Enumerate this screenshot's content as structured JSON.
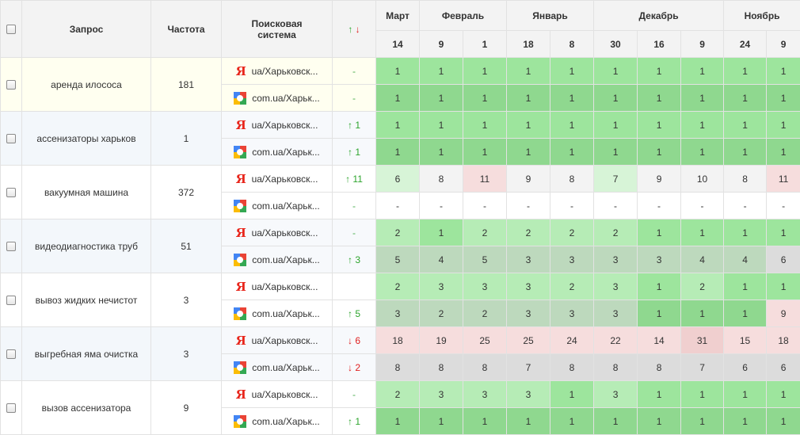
{
  "header": {
    "query_label": "Запрос",
    "freq_label": "Частота",
    "engine_label_line1": "Поисковая",
    "engine_label_line2": "система",
    "sort_up": "↑",
    "sort_down": "↓",
    "months": [
      {
        "label": "Март",
        "span": 1
      },
      {
        "label": "Февраль",
        "span": 2
      },
      {
        "label": "Январь",
        "span": 2
      },
      {
        "label": "Декабрь",
        "span": 3
      },
      {
        "label": "Ноябрь",
        "span": 2
      }
    ],
    "days": [
      "14",
      "9",
      "1",
      "18",
      "8",
      "30",
      "16",
      "9",
      "24",
      "9"
    ]
  },
  "colors": {
    "green_strong": "#9de59d",
    "green_mid": "#b6ecb6",
    "green_light": "#d7f4d7",
    "gray_green": "#bdd9bd",
    "gray": "#dcdcdc",
    "pink": "#f6dddd",
    "pink_strong": "#f0cfcf",
    "google_dark_green": "#8fd88f",
    "neutral": "#f3f3f3"
  },
  "rows": [
    {
      "query": "аренда илососа",
      "freq": "181",
      "tint": "y",
      "engines": [
        {
          "type": "yandex",
          "name": "ua/Харьковск...",
          "change": "-",
          "dir": "none",
          "positions": [
            "1",
            "1",
            "1",
            "1",
            "1",
            "1",
            "1",
            "1",
            "1",
            "1"
          ],
          "shade": "green_strong"
        },
        {
          "type": "google",
          "name": "com.ua/Харьк...",
          "change": "-",
          "dir": "none",
          "positions": [
            "1",
            "1",
            "1",
            "1",
            "1",
            "1",
            "1",
            "1",
            "1",
            "1"
          ],
          "shade": "google_dark_green"
        }
      ]
    },
    {
      "query": "ассенизаторы харьков",
      "freq": "1",
      "tint": "b",
      "engines": [
        {
          "type": "yandex",
          "name": "ua/Харьковск...",
          "change": "↑ 1",
          "dir": "up",
          "positions": [
            "1",
            "1",
            "1",
            "1",
            "1",
            "1",
            "1",
            "1",
            "1",
            "1"
          ],
          "shade": "green_strong"
        },
        {
          "type": "google",
          "name": "com.ua/Харьк...",
          "change": "↑ 1",
          "dir": "up",
          "positions": [
            "1",
            "1",
            "1",
            "1",
            "1",
            "1",
            "1",
            "1",
            "1",
            "1"
          ],
          "shade": "google_dark_green"
        }
      ]
    },
    {
      "query": "вакуумная машина",
      "freq": "372",
      "tint": "w",
      "engines": [
        {
          "type": "yandex",
          "name": "ua/Харьковск...",
          "change": "↑ 11",
          "dir": "up",
          "positions": [
            "6",
            "8",
            "11",
            "9",
            "8",
            "7",
            "9",
            "10",
            "8",
            "11"
          ],
          "shades": [
            "green_light",
            "neutral",
            "pink",
            "neutral",
            "neutral",
            "green_light",
            "neutral",
            "neutral",
            "neutral",
            "pink"
          ]
        },
        {
          "type": "google",
          "name": "com.ua/Харьк...",
          "change": "-",
          "dir": "none",
          "positions": [
            "-",
            "-",
            "-",
            "-",
            "-",
            "-",
            "-",
            "-",
            "-",
            "-"
          ],
          "shade": "white"
        }
      ]
    },
    {
      "query": "видеодиагностика труб",
      "freq": "51",
      "tint": "b",
      "engines": [
        {
          "type": "yandex",
          "name": "ua/Харьковск...",
          "change": "-",
          "dir": "none",
          "positions": [
            "2",
            "1",
            "2",
            "2",
            "2",
            "2",
            "1",
            "1",
            "1",
            "1"
          ],
          "shades": [
            "green_mid",
            "green_strong",
            "green_mid",
            "green_mid",
            "green_mid",
            "green_mid",
            "green_strong",
            "green_strong",
            "green_strong",
            "green_strong"
          ]
        },
        {
          "type": "google",
          "name": "com.ua/Харьк...",
          "change": "↑ 3",
          "dir": "up",
          "positions": [
            "5",
            "4",
            "5",
            "3",
            "3",
            "3",
            "3",
            "4",
            "4",
            "6"
          ],
          "shades": [
            "gray_green",
            "gray_green",
            "gray_green",
            "gray_green",
            "gray_green",
            "gray_green",
            "gray_green",
            "gray_green",
            "gray_green",
            "gray"
          ]
        }
      ]
    },
    {
      "query": "вывоз жидких нечистот",
      "freq": "3",
      "tint": "w",
      "engines": [
        {
          "type": "yandex",
          "name": "ua/Харьковск...",
          "change": "",
          "dir": "none",
          "positions": [
            "2",
            "3",
            "3",
            "3",
            "2",
            "3",
            "1",
            "2",
            "1",
            "1"
          ],
          "shades": [
            "green_mid",
            "green_mid",
            "green_mid",
            "green_mid",
            "green_mid",
            "green_mid",
            "green_strong",
            "green_mid",
            "green_strong",
            "green_strong"
          ]
        },
        {
          "type": "google",
          "name": "com.ua/Харьк...",
          "change": "↑ 5",
          "dir": "up",
          "positions": [
            "3",
            "2",
            "2",
            "3",
            "3",
            "3",
            "1",
            "1",
            "1",
            "9"
          ],
          "shades": [
            "gray_green",
            "gray_green",
            "gray_green",
            "gray_green",
            "gray_green",
            "gray_green",
            "google_dark_green",
            "google_dark_green",
            "google_dark_green",
            "pink"
          ]
        }
      ]
    },
    {
      "query": "выгребная яма очистка",
      "freq": "3",
      "tint": "b",
      "engines": [
        {
          "type": "yandex",
          "name": "ua/Харьковск...",
          "change": "↓ 6",
          "dir": "down",
          "positions": [
            "18",
            "19",
            "25",
            "25",
            "24",
            "22",
            "14",
            "31",
            "15",
            "18"
          ],
          "shades": [
            "pink",
            "pink",
            "pink",
            "pink",
            "pink",
            "pink",
            "pink",
            "pink_strong",
            "pink",
            "pink"
          ]
        },
        {
          "type": "google",
          "name": "com.ua/Харьк...",
          "change": "↓ 2",
          "dir": "down",
          "positions": [
            "8",
            "8",
            "8",
            "7",
            "8",
            "8",
            "8",
            "7",
            "6",
            "6"
          ],
          "shades": [
            "gray",
            "gray",
            "gray",
            "gray",
            "gray",
            "gray",
            "gray",
            "gray",
            "gray",
            "gray"
          ]
        }
      ]
    },
    {
      "query": "вызов ассенизатора",
      "freq": "9",
      "tint": "w",
      "engines": [
        {
          "type": "yandex",
          "name": "ua/Харьковск...",
          "change": "-",
          "dir": "none",
          "positions": [
            "2",
            "3",
            "3",
            "3",
            "1",
            "3",
            "1",
            "1",
            "1",
            "1"
          ],
          "shades": [
            "green_mid",
            "green_mid",
            "green_mid",
            "green_mid",
            "green_strong",
            "green_mid",
            "green_strong",
            "green_strong",
            "green_strong",
            "green_strong"
          ]
        },
        {
          "type": "google",
          "name": "com.ua/Харьк...",
          "change": "↑ 1",
          "dir": "up",
          "positions": [
            "1",
            "1",
            "1",
            "1",
            "1",
            "1",
            "1",
            "1",
            "1",
            "1"
          ],
          "shade": "google_dark_green"
        }
      ]
    }
  ]
}
